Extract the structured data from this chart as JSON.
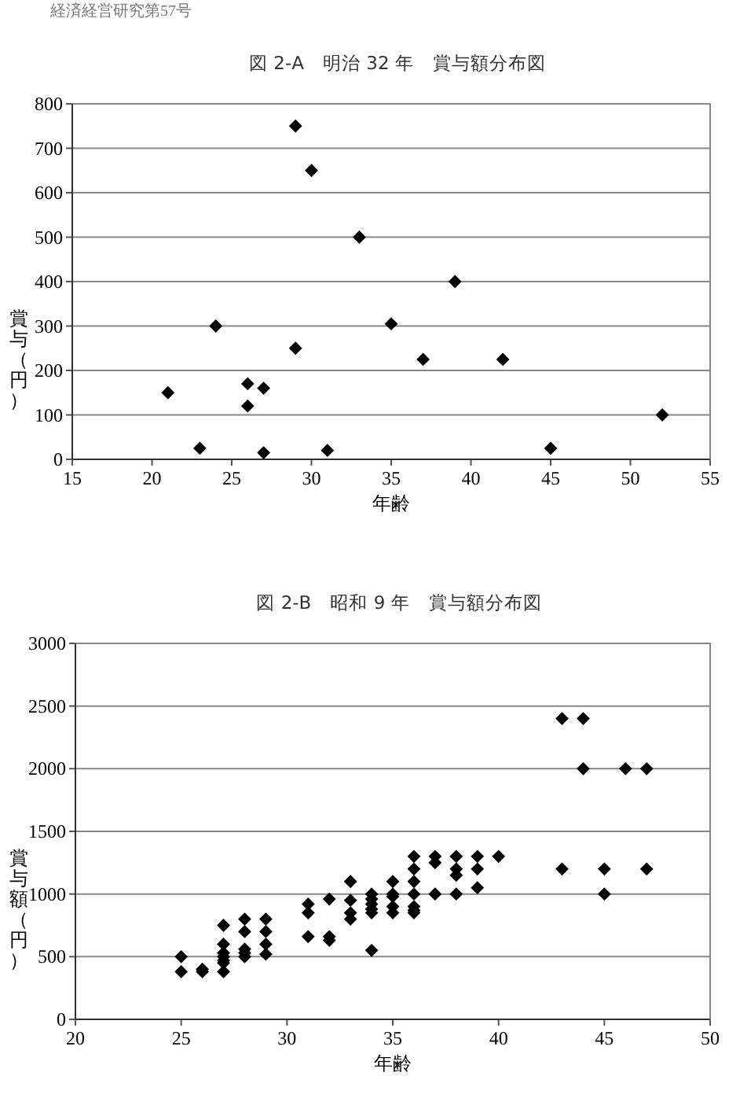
{
  "chart_data": [
    {
      "type": "scatter",
      "title": "図 2-A　明治 32 年　賞与額分布図",
      "xlabel": "年齢",
      "ylabel": "賞与（円）",
      "annotations": [
        "経済経営研究第57号"
      ],
      "xlim": [
        15,
        55
      ],
      "xticks": [
        15,
        20,
        25,
        30,
        35,
        40,
        45,
        50,
        55
      ],
      "ylim": [
        0,
        800
      ],
      "yticks": [
        0,
        100,
        200,
        300,
        400,
        500,
        600,
        700,
        800
      ],
      "grid": "y",
      "marker": "diamond",
      "series": [
        {
          "color": "#000000",
          "x": [
            21,
            23,
            24,
            26,
            26,
            27,
            27,
            29,
            29,
            30,
            31,
            33,
            35,
            37,
            39,
            42,
            45,
            52
          ],
          "values": [
            150,
            25,
            300,
            170,
            120,
            160,
            15,
            750,
            250,
            650,
            20,
            500,
            305,
            225,
            400,
            225,
            25,
            100
          ]
        }
      ]
    },
    {
      "type": "scatter",
      "title": "図 2-B　昭和 9 年　賞与額分布図",
      "xlabel": "年齢",
      "ylabel": "賞与額（円）",
      "xlim": [
        20,
        50
      ],
      "xticks": [
        20,
        25,
        30,
        35,
        40,
        45,
        50
      ],
      "ylim": [
        0,
        3000
      ],
      "yticks": [
        0,
        500,
        1000,
        1500,
        2000,
        2500,
        3000
      ],
      "grid": "y",
      "marker": "diamond",
      "series": [
        {
          "color": "#000000",
          "x": [
            25,
            25,
            26,
            26,
            27,
            27,
            27,
            27,
            27,
            27,
            27,
            28,
            28,
            28,
            28,
            28,
            29,
            29,
            29,
            29,
            31,
            31,
            31,
            32,
            32,
            32,
            33,
            33,
            33,
            33,
            34,
            34,
            34,
            34,
            34,
            34,
            35,
            35,
            35,
            35,
            35,
            36,
            36,
            36,
            36,
            36,
            36,
            36,
            37,
            37,
            37,
            38,
            38,
            38,
            38,
            39,
            39,
            39,
            40,
            43,
            43,
            44,
            44,
            45,
            45,
            46,
            47,
            47
          ],
          "values": [
            500,
            380,
            400,
            380,
            750,
            600,
            530,
            500,
            470,
            450,
            380,
            800,
            700,
            560,
            530,
            500,
            800,
            700,
            600,
            520,
            920,
            850,
            660,
            960,
            660,
            630,
            1100,
            950,
            850,
            800,
            1000,
            960,
            920,
            880,
            850,
            550,
            1100,
            1000,
            980,
            900,
            850,
            1300,
            1200,
            1100,
            1000,
            900,
            870,
            850,
            1300,
            1250,
            1000,
            1300,
            1200,
            1150,
            1000,
            1300,
            1200,
            1050,
            1300,
            2400,
            1200,
            2400,
            2000,
            1200,
            1000,
            2000,
            2000,
            1200
          ]
        }
      ]
    }
  ]
}
